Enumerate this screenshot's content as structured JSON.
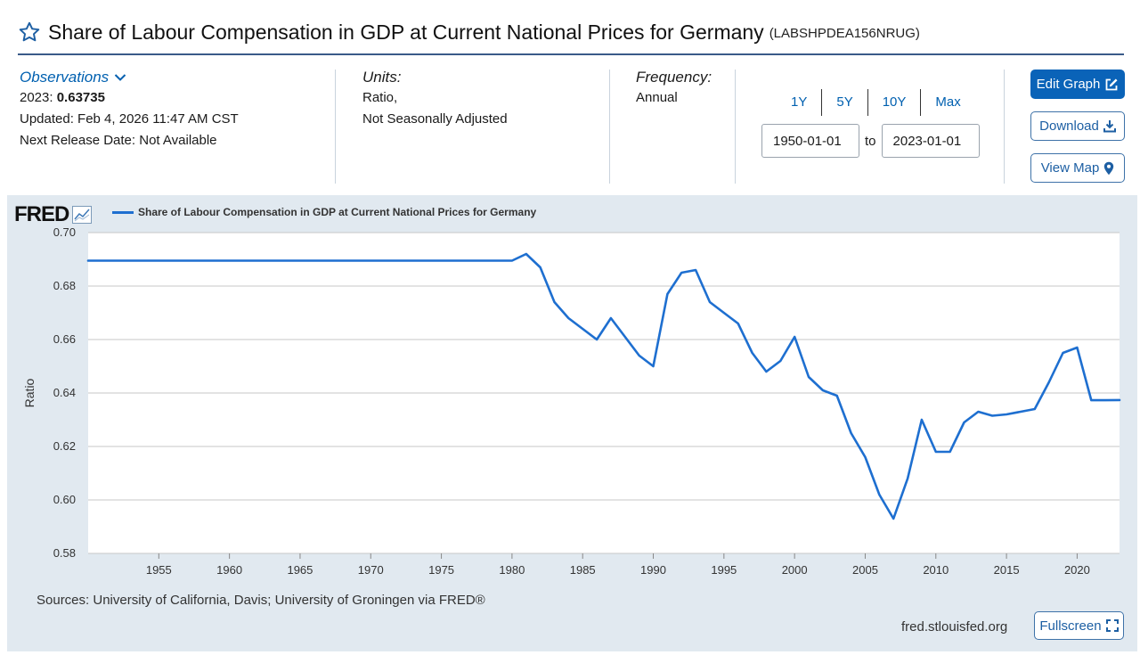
{
  "header": {
    "title": "Share of Labour Compensation in GDP at Current National Prices for Germany",
    "series_id": "(LABSHPDEA156NRUG)"
  },
  "observations": {
    "toggle_label": "Observations",
    "latest_period": "2023:",
    "latest_value": "0.63735",
    "updated": "Updated: Feb 4, 2026 11:47 AM CST",
    "next_release": "Next Release Date: Not Available"
  },
  "units": {
    "label": "Units:",
    "line1": "Ratio,",
    "line2": "Not Seasonally Adjusted"
  },
  "frequency": {
    "label": "Frequency:",
    "value": "Annual"
  },
  "range": {
    "buttons": [
      "1Y",
      "5Y",
      "10Y",
      "Max"
    ],
    "start": "1950-01-01",
    "to_label": "to",
    "end": "2023-01-01"
  },
  "actions": {
    "edit_graph": "Edit Graph",
    "download": "Download",
    "view_map": "View Map"
  },
  "chart": {
    "logo_text": "FRED",
    "legend_label": "Share of Labour Compensation in GDP at Current National Prices for Germany",
    "sources": "Sources: University of California, Davis; University of Groningen via FRED®",
    "site": "fred.stlouisfed.org",
    "fullscreen_label": "Fullscreen"
  },
  "colors": {
    "accent": "#0a63b8",
    "series": "#1e6fd0",
    "panel_bg": "#e1e9f0"
  },
  "chart_data": {
    "type": "line",
    "title": "Share of Labour Compensation in GDP at Current National Prices for Germany",
    "xlabel": "",
    "ylabel": "Ratio",
    "xlim": [
      1950,
      2023
    ],
    "ylim": [
      0.58,
      0.7
    ],
    "x_ticks": [
      1955,
      1960,
      1965,
      1970,
      1975,
      1980,
      1985,
      1990,
      1995,
      2000,
      2005,
      2010,
      2015,
      2020
    ],
    "y_ticks": [
      "0.58",
      "0.60",
      "0.62",
      "0.64",
      "0.66",
      "0.68",
      "0.70"
    ],
    "grid": true,
    "series": [
      {
        "name": "Share of Labour Compensation in GDP at Current National Prices for Germany",
        "x": [
          1950,
          1951,
          1952,
          1953,
          1954,
          1955,
          1956,
          1957,
          1958,
          1959,
          1960,
          1961,
          1962,
          1963,
          1964,
          1965,
          1966,
          1967,
          1968,
          1969,
          1970,
          1971,
          1972,
          1973,
          1974,
          1975,
          1976,
          1977,
          1978,
          1979,
          1980,
          1981,
          1982,
          1983,
          1984,
          1985,
          1986,
          1987,
          1988,
          1989,
          1990,
          1991,
          1992,
          1993,
          1994,
          1995,
          1996,
          1997,
          1998,
          1999,
          2000,
          2001,
          2002,
          2003,
          2004,
          2005,
          2006,
          2007,
          2008,
          2009,
          2010,
          2011,
          2012,
          2013,
          2014,
          2015,
          2016,
          2017,
          2018,
          2019,
          2020,
          2021,
          2022,
          2023
        ],
        "values": [
          0.6895,
          0.6895,
          0.6895,
          0.6895,
          0.6895,
          0.6895,
          0.6895,
          0.6895,
          0.6895,
          0.6895,
          0.6895,
          0.6895,
          0.6895,
          0.6895,
          0.6895,
          0.6895,
          0.6895,
          0.6895,
          0.6895,
          0.6895,
          0.6895,
          0.6895,
          0.6895,
          0.6895,
          0.6895,
          0.6895,
          0.6895,
          0.6895,
          0.6895,
          0.6895,
          0.6895,
          0.692,
          0.687,
          0.674,
          0.668,
          0.664,
          0.66,
          0.668,
          0.661,
          0.654,
          0.65,
          0.677,
          0.685,
          0.686,
          0.674,
          0.67,
          0.666,
          0.655,
          0.648,
          0.652,
          0.661,
          0.646,
          0.641,
          0.639,
          0.625,
          0.616,
          0.602,
          0.593,
          0.608,
          0.63,
          0.618,
          0.618,
          0.629,
          0.633,
          0.6315,
          0.632,
          0.633,
          0.634,
          0.644,
          0.655,
          0.657,
          0.6373,
          0.6373,
          0.63735
        ]
      }
    ]
  }
}
